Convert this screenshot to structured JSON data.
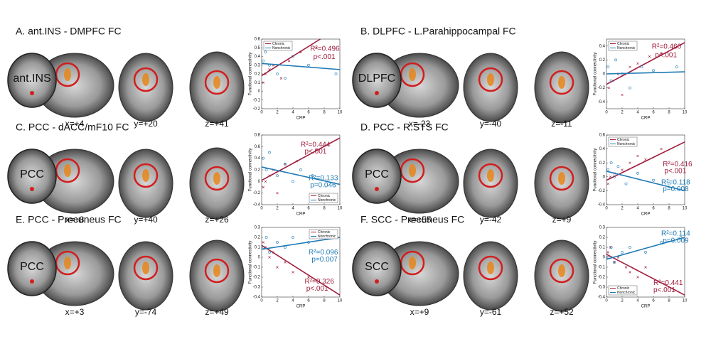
{
  "panels": [
    {
      "title": "A. ant.INS - DMPFC FC",
      "seed_label": "ant.INS",
      "coords": [
        "x=+4",
        "y=+20",
        "z=+41"
      ],
      "chart": {
        "type": "scatter",
        "xlabel": "CRP",
        "ylabel": "Functional connectivity",
        "xlim": [
          0,
          10
        ],
        "xticks": [
          0,
          2,
          4,
          6,
          8,
          10
        ],
        "ylim": [
          -0.2,
          0.6
        ],
        "yticks": [
          -0.2,
          -0.1,
          0,
          0.1,
          0.2,
          0.3,
          0.4,
          0.5,
          0.6
        ],
        "legend": "upper left",
        "annotations": [
          {
            "text": "R²=0.496",
            "color": "#a01c3c"
          },
          {
            "text": "p<.001",
            "color": "#a01c3c"
          }
        ],
        "series": [
          {
            "name": "Chronic",
            "color": "#a01c3c",
            "marker": "x",
            "x": [
              0.2,
              0.5,
              1,
              1.5,
              2.5,
              3.5,
              5,
              7
            ],
            "y": [
              0.1,
              0.2,
              0.25,
              0.3,
              0.15,
              0.35,
              0.45,
              0.5
            ],
            "fit_x": [
              0,
              7.5
            ],
            "fit_y": [
              0.18,
              0.6
            ]
          },
          {
            "name": "Nonchronic",
            "color": "#1f7ab5",
            "marker": "o",
            "x": [
              0.2,
              0.5,
              1,
              2,
              3,
              4,
              6,
              9.5
            ],
            "y": [
              0.35,
              0.45,
              0.3,
              0.2,
              0.15,
              0.4,
              0.3,
              0.2
            ],
            "fit_x": [
              0,
              10
            ],
            "fit_y": [
              0.32,
              0.25
            ]
          }
        ]
      }
    },
    {
      "title": "B. DLPFC - L.Parahippocampal FC",
      "seed_label": "DLPFC",
      "coords": [
        "x=-23",
        "y=-40",
        "z=-11"
      ],
      "chart": {
        "type": "scatter",
        "xlabel": "CRP",
        "ylabel": "Functional connectivity",
        "xlim": [
          0,
          10
        ],
        "xticks": [
          0,
          2,
          4,
          6,
          8,
          10
        ],
        "ylim": [
          -0.5,
          0.5
        ],
        "yticks": [
          -0.4,
          -0.2,
          0,
          0.2,
          0.4
        ],
        "legend": "upper left",
        "annotations": [
          {
            "text": "R²=0.460",
            "color": "#a01c3c"
          },
          {
            "text": "p<.001",
            "color": "#a01c3c"
          }
        ],
        "series": [
          {
            "name": "Chronic",
            "color": "#a01c3c",
            "marker": "x",
            "x": [
              0.3,
              0.8,
              1.5,
              2,
              3,
              4,
              5.5,
              7
            ],
            "y": [
              -0.2,
              -0.1,
              0,
              -0.3,
              0.1,
              0.15,
              0.25,
              0.3
            ],
            "fit_x": [
              0,
              10
            ],
            "fit_y": [
              -0.15,
              0.45
            ]
          },
          {
            "name": "Nonchronic",
            "color": "#1f7ab5",
            "marker": "o",
            "x": [
              0.2,
              0.6,
              1.2,
              2,
              3,
              4.5,
              6,
              9
            ],
            "y": [
              0.1,
              -0.1,
              0.2,
              0,
              -0.2,
              0.1,
              0.05,
              0.1
            ],
            "fit_x": [
              0,
              10
            ],
            "fit_y": [
              0,
              0.03
            ]
          }
        ]
      }
    },
    {
      "title": "C. PCC - dACC/mF10 FC",
      "seed_label": "PCC",
      "coords": [
        "x=+8",
        "y=+40",
        "z=+26"
      ],
      "chart": {
        "type": "scatter",
        "xlabel": "CRP",
        "ylabel": "Functional connectivity",
        "xlim": [
          0,
          10
        ],
        "xticks": [
          0,
          2,
          4,
          6,
          8,
          10
        ],
        "ylim": [
          -0.4,
          0.8
        ],
        "yticks": [
          -0.4,
          -0.2,
          0,
          0.2,
          0.4,
          0.6,
          0.8
        ],
        "legend": "lower right",
        "annotations": [
          {
            "text": "R²=0.444",
            "color": "#a01c3c"
          },
          {
            "text": "p<.001",
            "color": "#a01c3c"
          },
          {
            "text": "R²=0.133",
            "color": "#1f7ab5"
          },
          {
            "text": "p=0.046",
            "color": "#1f7ab5"
          }
        ],
        "series": [
          {
            "name": "Chronic",
            "color": "#a01c3c",
            "marker": "x",
            "x": [
              0.2,
              0.5,
              1,
              1.5,
              2,
              3,
              4.5,
              7
            ],
            "y": [
              -0.1,
              0,
              0.1,
              0.2,
              -0.2,
              0.3,
              0.35,
              0.55
            ],
            "fit_x": [
              0,
              10
            ],
            "fit_y": [
              0.02,
              0.75
            ]
          },
          {
            "name": "Nonchronic",
            "color": "#1f7ab5",
            "marker": "o",
            "x": [
              0.2,
              0.6,
              1,
              2,
              3,
              4,
              5,
              6.5
            ],
            "y": [
              0.4,
              0.2,
              0.5,
              0.1,
              0.3,
              0.0,
              0.2,
              0.1
            ],
            "fit_x": [
              0,
              10
            ],
            "fit_y": [
              0.25,
              -0.05
            ]
          }
        ]
      }
    },
    {
      "title": "D. PCC - R.STS FC",
      "seed_label": "PCC",
      "coords": [
        "x=+55",
        "y=-42",
        "z=+9"
      ],
      "chart": {
        "type": "scatter",
        "xlabel": "CRP",
        "ylabel": "Functional connectivity",
        "xlim": [
          0,
          10
        ],
        "xticks": [
          0,
          2,
          4,
          6,
          8,
          10
        ],
        "ylim": [
          -0.4,
          0.6
        ],
        "yticks": [
          -0.4,
          -0.2,
          0,
          0.2,
          0.4,
          0.6
        ],
        "legend": "upper left",
        "annotations": [
          {
            "text": "R²=0.416",
            "color": "#a01c3c"
          },
          {
            "text": "p<.001",
            "color": "#a01c3c"
          },
          {
            "text": "R²=0.118",
            "color": "#1f7ab5"
          },
          {
            "text": "p=0.008",
            "color": "#1f7ab5"
          }
        ],
        "series": [
          {
            "name": "Chronic",
            "color": "#a01c3c",
            "marker": "x",
            "x": [
              0.2,
              0.5,
              1,
              2,
              3,
              4,
              5,
              7
            ],
            "y": [
              -0.1,
              0,
              0.05,
              0.1,
              0.2,
              0.3,
              0.25,
              0.4
            ],
            "fit_x": [
              0,
              10
            ],
            "fit_y": [
              -0.05,
              0.5
            ]
          },
          {
            "name": "Nonchronic",
            "color": "#1f7ab5",
            "marker": "o",
            "x": [
              0.2,
              0.6,
              1,
              1.5,
              2.5,
              4,
              6,
              8
            ],
            "y": [
              0.1,
              0.2,
              0,
              0.15,
              -0.1,
              0.05,
              -0.05,
              -0.1
            ],
            "fit_x": [
              0,
              10
            ],
            "fit_y": [
              0.08,
              -0.2
            ]
          }
        ]
      }
    },
    {
      "title": "E. PCC - Precuneus FC",
      "seed_label": "PCC",
      "coords": [
        "x=+3",
        "y=-74",
        "z=+49"
      ],
      "chart": {
        "type": "scatter",
        "xlabel": "CRP",
        "ylabel": "Functional connectivity",
        "xlim": [
          0,
          10
        ],
        "xticks": [
          0,
          2,
          4,
          6,
          8,
          10
        ],
        "ylim": [
          -0.4,
          0.3
        ],
        "yticks": [
          -0.4,
          -0.3,
          -0.2,
          -0.1,
          0,
          0.1,
          0.2,
          0.3
        ],
        "legend": "upper right",
        "annotations": [
          {
            "text": "R²=0.096",
            "color": "#1f7ab5"
          },
          {
            "text": "p=0.007",
            "color": "#1f7ab5"
          },
          {
            "text": "R²=0.326",
            "color": "#a01c3c"
          },
          {
            "text": "p<.001",
            "color": "#a01c3c"
          }
        ],
        "series": [
          {
            "name": "Chronic",
            "color": "#a01c3c",
            "marker": "x",
            "x": [
              0.2,
              0.5,
              1,
              1.5,
              2,
              3,
              4,
              6
            ],
            "y": [
              0.15,
              0.1,
              0,
              0.05,
              -0.1,
              -0.05,
              -0.15,
              -0.2
            ],
            "fit_x": [
              0,
              10
            ],
            "fit_y": [
              0.12,
              -0.38
            ]
          },
          {
            "name": "Nonchronic",
            "color": "#1f7ab5",
            "marker": "o",
            "x": [
              0.2,
              0.6,
              1,
              2,
              3,
              4,
              6,
              9.5
            ],
            "y": [
              0.1,
              0.2,
              0.05,
              0.15,
              0.1,
              0.2,
              0.15,
              0.25
            ],
            "fit_x": [
              0,
              10
            ],
            "fit_y": [
              0.08,
              0.2
            ]
          }
        ]
      }
    },
    {
      "title": "F. SCC - Precuneus FC",
      "seed_label": "SCC",
      "coords": [
        "x=+9",
        "y=-61",
        "z=+52"
      ],
      "chart": {
        "type": "scatter",
        "xlabel": "CRP",
        "ylabel": "Functional connectivity",
        "xlim": [
          0,
          10
        ],
        "xticks": [
          0,
          2,
          4,
          6,
          8,
          10
        ],
        "ylim": [
          -0.4,
          0.3
        ],
        "yticks": [
          -0.4,
          -0.3,
          -0.2,
          -0.1,
          0,
          0.1,
          0.2,
          0.3
        ],
        "legend": "lower left",
        "annotations": [
          {
            "text": "R²=0.114",
            "color": "#1f7ab5"
          },
          {
            "text": "p=0.009",
            "color": "#1f7ab5"
          },
          {
            "text": "R²=0.441",
            "color": "#a01c3c"
          },
          {
            "text": "p<.001",
            "color": "#a01c3c"
          }
        ],
        "series": [
          {
            "name": "Chronic",
            "color": "#a01c3c",
            "marker": "x",
            "x": [
              0.2,
              0.5,
              1,
              1.5,
              2.5,
              3,
              4,
              5
            ],
            "y": [
              0.05,
              0.1,
              -0.05,
              0,
              -0.1,
              -0.15,
              -0.2,
              -0.1
            ],
            "fit_x": [
              0,
              10
            ],
            "fit_y": [
              0.03,
              -0.38
            ]
          },
          {
            "name": "Nonchronic",
            "color": "#1f7ab5",
            "marker": "o",
            "x": [
              0.2,
              0.6,
              1,
              2,
              3,
              5,
              7,
              9.5
            ],
            "y": [
              0,
              0.1,
              -0.05,
              0.05,
              0.1,
              0.05,
              0.15,
              0.2
            ],
            "fit_x": [
              0,
              10
            ],
            "fit_y": [
              -0.02,
              0.2
            ]
          }
        ]
      }
    }
  ]
}
